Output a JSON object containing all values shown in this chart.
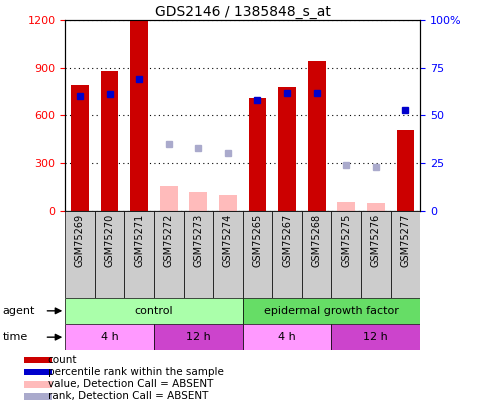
{
  "title": "GDS2146 / 1385848_s_at",
  "samples": [
    "GSM75269",
    "GSM75270",
    "GSM75271",
    "GSM75272",
    "GSM75273",
    "GSM75274",
    "GSM75265",
    "GSM75267",
    "GSM75268",
    "GSM75275",
    "GSM75276",
    "GSM75277"
  ],
  "count_values": [
    790,
    880,
    1200,
    null,
    null,
    null,
    710,
    780,
    940,
    null,
    null,
    510
  ],
  "count_absent": [
    null,
    null,
    null,
    155,
    120,
    100,
    null,
    null,
    null,
    55,
    50,
    null
  ],
  "percentile_values": [
    60,
    61,
    69,
    null,
    null,
    null,
    58,
    62,
    62,
    null,
    null,
    53
  ],
  "rank_absent": [
    null,
    null,
    null,
    35,
    33,
    30,
    null,
    null,
    null,
    24,
    23,
    null
  ],
  "ylim_left": [
    0,
    1200
  ],
  "ylim_right": [
    0,
    100
  ],
  "yticks_left": [
    0,
    300,
    600,
    900,
    1200
  ],
  "yticks_right": [
    0,
    25,
    50,
    75,
    100
  ],
  "agent_control_color": "#aaffaa",
  "agent_egf_color": "#66dd66",
  "time_4h_color": "#ff99ff",
  "time_12h_color": "#cc44cc",
  "bar_width": 0.6,
  "count_color": "#cc0000",
  "count_absent_color": "#ffbbbb",
  "percentile_color": "#0000cc",
  "rank_absent_color": "#aaaacc",
  "bg_color": "#ffffff",
  "title_fontsize": 10,
  "tick_fontsize": 8,
  "label_fontsize": 7
}
